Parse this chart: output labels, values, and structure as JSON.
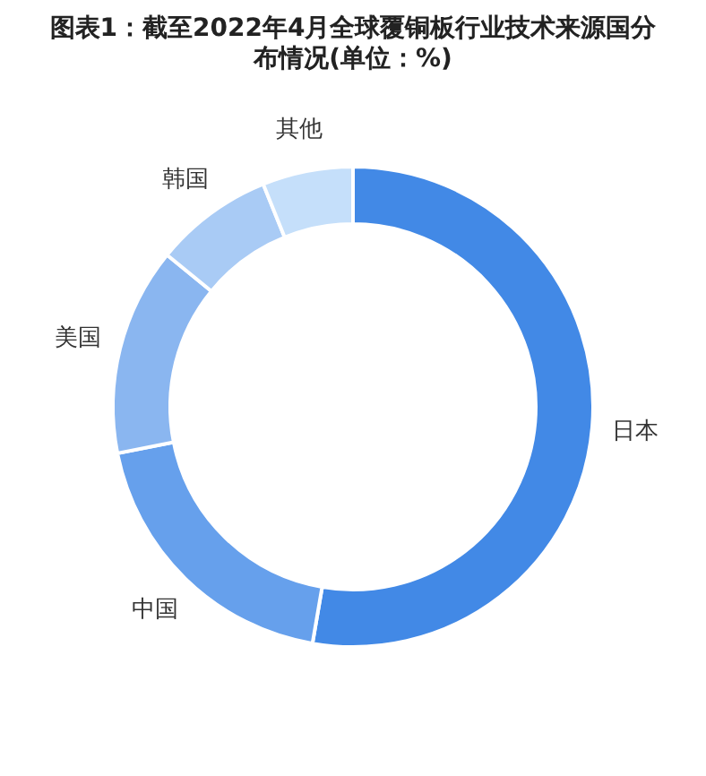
{
  "chart_data": {
    "type": "donut",
    "title": "图表1：截至2022年4月全球覆铜板行业技术来源国分布情况(单位：%)",
    "categories": [
      "日本",
      "中国",
      "美国",
      "韩国",
      "其他"
    ],
    "values": [
      52.7,
      19.2,
      14.0,
      8.0,
      6.1
    ],
    "colors": [
      "#4289e6",
      "#66a0ec",
      "#8ab6f0",
      "#a9cbf5",
      "#c5dffa"
    ]
  }
}
